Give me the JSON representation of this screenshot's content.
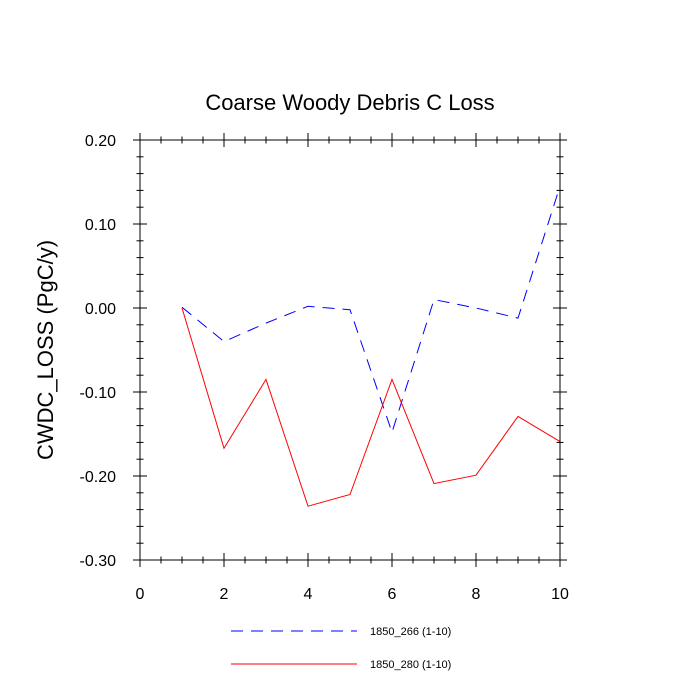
{
  "chart_data": {
    "type": "line",
    "title": "Coarse Woody Debris C Loss",
    "xlabel": "",
    "ylabel": "CWDC_LOSS  (PgC/y)",
    "xlim": [
      0,
      10
    ],
    "ylim": [
      -0.3,
      0.2
    ],
    "x_ticks": [
      0,
      2,
      4,
      6,
      8,
      10
    ],
    "x_tick_labels": [
      "0",
      "2",
      "4",
      "6",
      "8",
      "10"
    ],
    "y_ticks": [
      -0.3,
      -0.2,
      -0.1,
      0.0,
      0.1,
      0.2
    ],
    "y_tick_labels": [
      "-0.30",
      "-0.20",
      "-0.10",
      "0.00",
      "0.10",
      "0.20"
    ],
    "grid": false,
    "legend_position": "bottom",
    "x": [
      1,
      2,
      3,
      4,
      5,
      6,
      7,
      8,
      9,
      10
    ],
    "series": [
      {
        "name": "1850_266 (1-10)",
        "color": "#0000ff",
        "line_style": "dashed",
        "values": [
          0.001,
          -0.04,
          -0.018,
          0.002,
          -0.002,
          -0.148,
          0.01,
          0.0,
          -0.012,
          0.145
        ]
      },
      {
        "name": "1850_280 (1-10)",
        "color": "#ff0000",
        "line_style": "solid",
        "values": [
          0.0,
          -0.167,
          -0.085,
          -0.236,
          -0.222,
          -0.085,
          -0.209,
          -0.199,
          -0.129,
          -0.159
        ]
      }
    ]
  }
}
